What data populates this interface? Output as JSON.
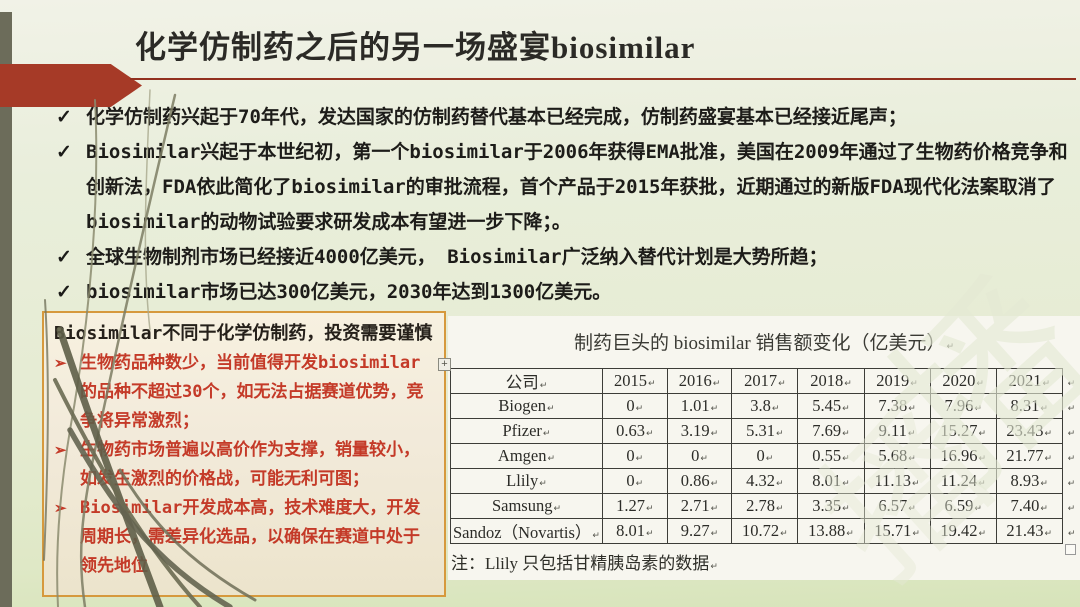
{
  "slide": {
    "title": "化学仿制药之后的另一场盛宴biosimilar",
    "bullets": [
      {
        "marker": "✓",
        "text": "化学仿制药兴起于70年代，发达国家的仿制药替代基本已经完成，仿制药盛宴基本已经接近尾声；"
      },
      {
        "marker": "✓",
        "text": "Biosimilar兴起于本世纪初，第一个biosimilar于2006年获得EMA批准，美国在2009年通过了生物药价格竞争和创新法，FDA依此简化了biosimilar的审批流程，首个产品于2015年获批，近期通过的新版FDA现代化法案取消了biosimilar的动物试验要求研发成本有望进一步下降；。"
      },
      {
        "marker": "✓",
        "text": "全球生物制剂市场已经接近4000亿美元， Biosimilar广泛纳入替代计划是大势所趋；"
      },
      {
        "marker": "✓",
        "text": "biosimilar市场已达300亿美元，2030年达到1300亿美元。"
      }
    ]
  },
  "caution_box": {
    "title": "Biosimilar不同于化学仿制药，投资需要谨慎",
    "items": [
      {
        "marker": "➢",
        "text": "生物药品种数少，当前值得开发biosimilar的品种不超过30个，如无法占据赛道优势，竞争将异常激烈；"
      },
      {
        "marker": "➢",
        "text": "生物药市场普遍以高价作为支撑，销量较小，如发生激烈的价格战，可能无利可图；"
      },
      {
        "marker": "➢",
        "text": "Biosimilar开发成本高，技术难度大，开发周期长，需差异化选品，以确保在赛道中处于领先地位"
      }
    ]
  },
  "table_panel": {
    "title": "制药巨头的 biosimilar 销售额变化（亿美元）",
    "end_mark": "↵",
    "move_handle_icon": "+",
    "note": "注：Llily 只包括甘精胰岛素的数据"
  },
  "chart_data": {
    "type": "table",
    "title": "制药巨头的 biosimilar 销售额变化（亿美元）",
    "columns": [
      "公司",
      "2015",
      "2016",
      "2017",
      "2018",
      "2019",
      "2020",
      "2021"
    ],
    "rows": [
      {
        "company": "Biogen",
        "values": [
          "0",
          "1.01",
          "3.8",
          "5.45",
          "7.38",
          "7.96",
          "8.31"
        ]
      },
      {
        "company": "Pfizer",
        "values": [
          "0.63",
          "3.19",
          "5.31",
          "7.69",
          "9.11",
          "15.27",
          "23.43"
        ]
      },
      {
        "company": "Amgen",
        "values": [
          "0",
          "0",
          "0",
          "0.55",
          "5.68",
          "16.96",
          "21.77"
        ]
      },
      {
        "company": "Llily",
        "values": [
          "0",
          "0.86",
          "4.32",
          "8.01",
          "11.13",
          "11.24",
          "8.93"
        ]
      },
      {
        "company": "Samsung",
        "values": [
          "1.27",
          "2.71",
          "2.78",
          "3.35",
          "6.57",
          "6.59",
          "7.40"
        ]
      },
      {
        "company": "Sandoz（Novartis）",
        "values": [
          "8.01",
          "9.27",
          "10.72",
          "13.88",
          "15.71",
          "19.42",
          "21.43"
        ]
      }
    ]
  },
  "watermark": {
    "text": "播"
  },
  "colors": {
    "accent_red": "#a63a27",
    "caution_border": "#d6993d",
    "caution_text": "#c43a28",
    "background": "#e8edd8",
    "stripe": "#6c6c5a"
  }
}
